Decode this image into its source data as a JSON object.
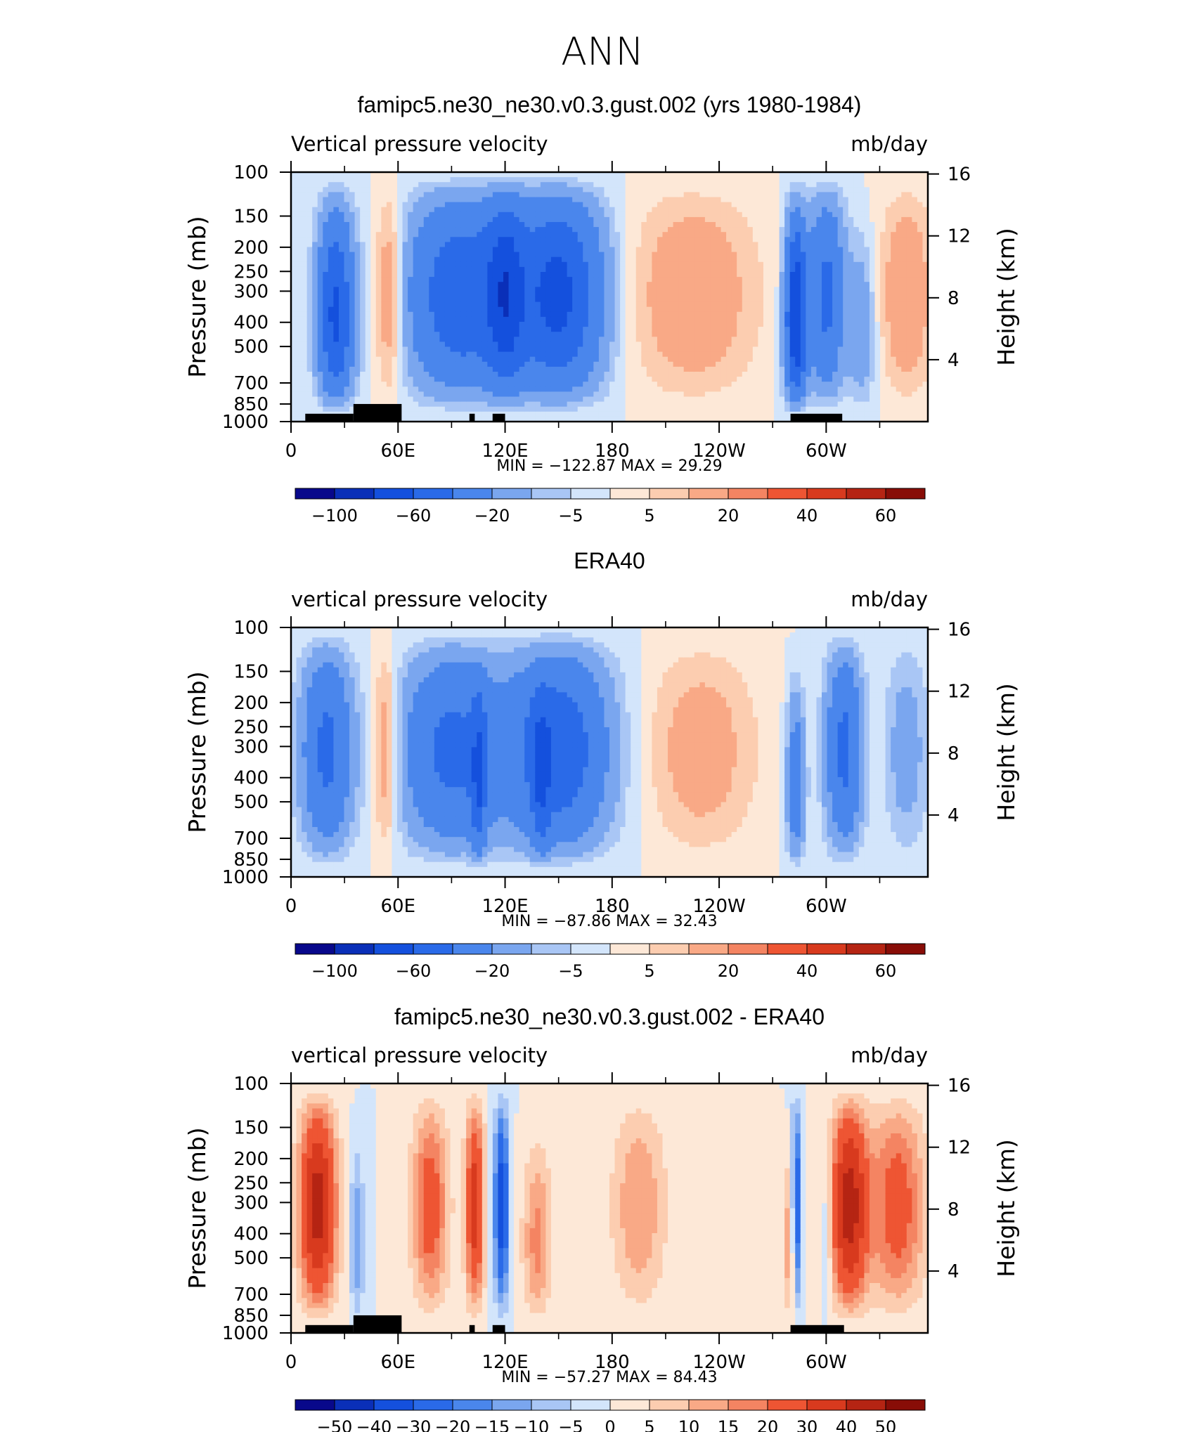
{
  "figure_title": "ANN",
  "shared_axes": {
    "xlabel_ticks": [
      "0",
      "60E",
      "120E",
      "180",
      "120W",
      "60W"
    ],
    "x_tick_lon": [
      0,
      60,
      120,
      180,
      240,
      300
    ],
    "x_minor_tick_lon": [
      30,
      90,
      150,
      210,
      270,
      330
    ],
    "xlim_lon": [
      0,
      357
    ],
    "y_left_label": "Pressure (mb)",
    "y_left_ticks": [
      100,
      150,
      200,
      250,
      300,
      400,
      500,
      700,
      850,
      1000
    ],
    "ylim_mb": [
      100,
      1000
    ],
    "y_right_label": "Height (km)",
    "y_right_ticks": [
      16,
      12,
      8,
      4
    ],
    "units": "mb/day"
  },
  "chart_data": [
    {
      "type": "heatmap",
      "title": "famipc5.ne30_ne30.v0.3.gust.002 (yrs 1980-1984)",
      "variable": "Vertical pressure velocity",
      "units": "mb/day",
      "stats_text": "MIN = −122.87   MAX =  29.29",
      "min": -122.87,
      "max": 29.29,
      "colorbar_labels": [
        "−100",
        "−60",
        "−20",
        "−5",
        "5",
        "20",
        "40",
        "60"
      ],
      "topography_lon_ranges": [
        [
          8,
          35
        ],
        [
          35,
          62
        ],
        [
          100,
          103
        ],
        [
          113,
          120
        ],
        [
          280,
          309
        ]
      ]
    },
    {
      "type": "heatmap",
      "title": "ERA40",
      "variable": "vertical pressure velocity",
      "units": "mb/day",
      "stats_text": "MIN = −87.86   MAX =  32.43",
      "min": -87.86,
      "max": 32.43,
      "colorbar_labels": [
        "−100",
        "−60",
        "−20",
        "−5",
        "5",
        "20",
        "40",
        "60"
      ],
      "topography_lon_ranges": []
    },
    {
      "type": "heatmap",
      "title": "famipc5.ne30_ne30.v0.3.gust.002 - ERA40",
      "variable": "vertical pressure velocity",
      "units": "mb/day",
      "stats_text": "MIN = −57.27   MAX =  84.43",
      "min": -57.27,
      "max": 84.43,
      "colorbar_labels": [
        "−50",
        "−40",
        "−30",
        "−20",
        "−15",
        "−10",
        "−5",
        "0",
        "5",
        "10",
        "15",
        "20",
        "30",
        "40",
        "50"
      ],
      "topography_lon_ranges": [
        [
          8,
          35
        ],
        [
          35,
          62
        ],
        [
          100,
          103
        ],
        [
          113,
          120
        ],
        [
          280,
          310
        ]
      ]
    }
  ],
  "colors": {
    "ramp": [
      "#08088b",
      "#0a2fb8",
      "#1450dd",
      "#2a6ae8",
      "#4a86ec",
      "#7aa6ef",
      "#a9c6f5",
      "#d3e5fb",
      "#fde8d7",
      "#fccdb0",
      "#f9a986",
      "#f48462",
      "#ee5533",
      "#d83a1e",
      "#b52413",
      "#880d07"
    ],
    "diff_ramp": [
      "#08088b",
      "#0a2fb8",
      "#1450dd",
      "#2a6ae8",
      "#4a86ec",
      "#7aa6ef",
      "#a9c6f5",
      "#d3e5fb",
      "#fde8d7",
      "#fccdb0",
      "#f9a986",
      "#f48462",
      "#ee5533",
      "#d83a1e",
      "#b52413",
      "#880d07"
    ]
  }
}
